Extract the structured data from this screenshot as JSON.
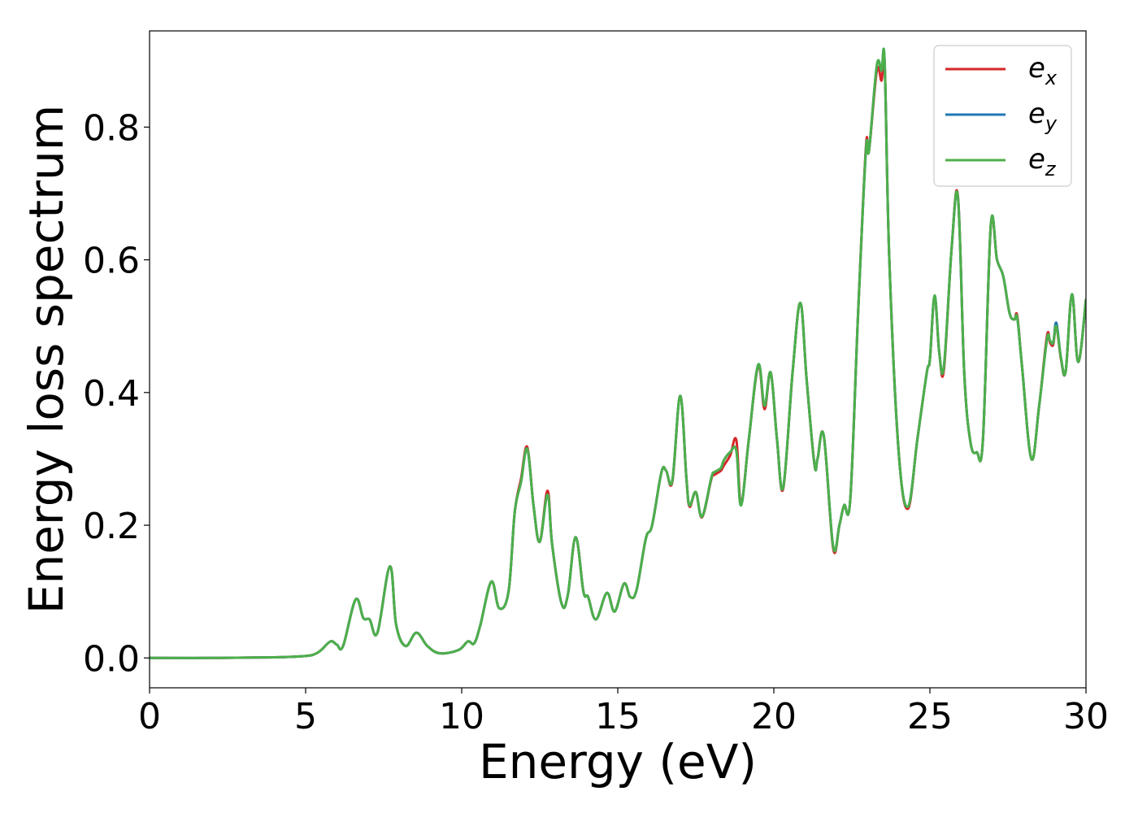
{
  "chart_data": {
    "type": "line",
    "title": "",
    "xlabel": "Energy (eV)",
    "ylabel": "Energy loss spectrum",
    "xlim": [
      0,
      30
    ],
    "ylim": [
      -0.045,
      0.945
    ],
    "xticks": [
      0,
      5,
      10,
      15,
      20,
      25,
      30
    ],
    "xtick_labels": [
      "0",
      "5",
      "10",
      "15",
      "20",
      "25",
      "30"
    ],
    "yticks": [
      0.0,
      0.2,
      0.4,
      0.6,
      0.8
    ],
    "ytick_labels": [
      "0.0",
      "0.2",
      "0.4",
      "0.6",
      "0.8"
    ],
    "grid": false,
    "legend": {
      "placement": "top-right",
      "entries": [
        {
          "base": "e",
          "sub": "x",
          "color": "#d62728"
        },
        {
          "base": "e",
          "sub": "y",
          "color": "#1f77b4"
        },
        {
          "base": "e",
          "sub": "z",
          "color": "#4daf4a"
        }
      ]
    },
    "x": [
      0,
      2,
      4,
      5,
      5.3,
      5.5,
      5.8,
      6.0,
      6.2,
      6.6,
      6.85,
      7.05,
      7.3,
      7.7,
      7.9,
      8.2,
      8.55,
      8.9,
      9.3,
      9.9,
      10.2,
      10.4,
      10.6,
      10.95,
      11.2,
      11.5,
      11.7,
      11.9,
      12.1,
      12.3,
      12.5,
      12.75,
      12.9,
      13.2,
      13.4,
      13.65,
      13.9,
      14.05,
      14.3,
      14.65,
      14.9,
      15.2,
      15.4,
      15.6,
      15.9,
      16.1,
      16.4,
      16.55,
      16.75,
      17.0,
      17.2,
      17.3,
      17.5,
      17.7,
      18.0,
      18.1,
      18.3,
      18.4,
      18.6,
      18.8,
      18.95,
      19.2,
      19.5,
      19.7,
      19.9,
      20.1,
      20.3,
      20.6,
      20.85,
      21.05,
      21.3,
      21.4,
      21.6,
      21.9,
      22.1,
      22.25,
      22.45,
      22.7,
      22.95,
      23.05,
      23.3,
      23.45,
      23.55,
      23.7,
      24.0,
      24.3,
      24.6,
      24.9,
      25.0,
      25.15,
      25.3,
      25.45,
      25.7,
      25.9,
      26.1,
      26.3,
      26.5,
      26.7,
      26.95,
      27.15,
      27.35,
      27.55,
      27.7,
      27.8,
      27.95,
      28.25,
      28.5,
      28.75,
      28.85,
      28.95,
      29.05,
      29.2,
      29.35,
      29.55,
      29.75,
      30.0
    ],
    "series": [
      {
        "name": "",
        "color": "#d62728",
        "values": [
          0.0,
          0.0,
          0.001,
          0.003,
          0.006,
          0.012,
          0.025,
          0.02,
          0.018,
          0.088,
          0.06,
          0.058,
          0.038,
          0.138,
          0.05,
          0.018,
          0.038,
          0.018,
          0.007,
          0.012,
          0.025,
          0.022,
          0.05,
          0.115,
          0.075,
          0.1,
          0.22,
          0.27,
          0.318,
          0.23,
          0.175,
          0.252,
          0.17,
          0.082,
          0.095,
          0.182,
          0.1,
          0.092,
          0.058,
          0.098,
          0.07,
          0.112,
          0.092,
          0.102,
          0.18,
          0.2,
          0.28,
          0.282,
          0.266,
          0.395,
          0.27,
          0.228,
          0.25,
          0.212,
          0.27,
          0.276,
          0.282,
          0.29,
          0.305,
          0.328,
          0.233,
          0.33,
          0.44,
          0.375,
          0.43,
          0.33,
          0.255,
          0.43,
          0.535,
          0.42,
          0.292,
          0.3,
          0.335,
          0.165,
          0.2,
          0.23,
          0.24,
          0.52,
          0.77,
          0.765,
          0.885,
          0.87,
          0.895,
          0.6,
          0.31,
          0.225,
          0.33,
          0.43,
          0.45,
          0.545,
          0.46,
          0.435,
          0.62,
          0.695,
          0.43,
          0.325,
          0.31,
          0.33,
          0.65,
          0.6,
          0.575,
          0.52,
          0.51,
          0.515,
          0.44,
          0.3,
          0.38,
          0.485,
          0.475,
          0.472,
          0.5,
          0.45,
          0.432,
          0.548,
          0.446,
          0.54
        ]
      },
      {
        "name": "",
        "color": "#1f77b4",
        "values": [
          0.0,
          0.0,
          0.001,
          0.003,
          0.006,
          0.012,
          0.025,
          0.02,
          0.018,
          0.088,
          0.06,
          0.058,
          0.038,
          0.138,
          0.05,
          0.018,
          0.038,
          0.018,
          0.007,
          0.012,
          0.025,
          0.022,
          0.05,
          0.115,
          0.075,
          0.1,
          0.22,
          0.265,
          0.315,
          0.23,
          0.175,
          0.246,
          0.17,
          0.082,
          0.095,
          0.182,
          0.1,
          0.092,
          0.058,
          0.098,
          0.07,
          0.112,
          0.092,
          0.102,
          0.18,
          0.2,
          0.28,
          0.282,
          0.268,
          0.395,
          0.27,
          0.23,
          0.25,
          0.213,
          0.272,
          0.28,
          0.286,
          0.298,
          0.31,
          0.312,
          0.23,
          0.33,
          0.442,
          0.38,
          0.43,
          0.33,
          0.257,
          0.43,
          0.535,
          0.42,
          0.292,
          0.3,
          0.335,
          0.168,
          0.2,
          0.23,
          0.24,
          0.52,
          0.765,
          0.765,
          0.893,
          0.885,
          0.898,
          0.6,
          0.31,
          0.228,
          0.33,
          0.43,
          0.45,
          0.546,
          0.46,
          0.44,
          0.62,
          0.693,
          0.43,
          0.325,
          0.31,
          0.33,
          0.652,
          0.6,
          0.575,
          0.52,
          0.51,
          0.512,
          0.44,
          0.3,
          0.38,
          0.48,
          0.478,
          0.475,
          0.505,
          0.452,
          0.432,
          0.548,
          0.446,
          0.54
        ]
      },
      {
        "name": "",
        "color": "#4daf4a",
        "values": [
          0.0,
          0.0,
          0.001,
          0.003,
          0.006,
          0.012,
          0.025,
          0.02,
          0.018,
          0.088,
          0.06,
          0.058,
          0.038,
          0.138,
          0.05,
          0.018,
          0.038,
          0.018,
          0.007,
          0.012,
          0.025,
          0.022,
          0.05,
          0.115,
          0.075,
          0.1,
          0.22,
          0.265,
          0.315,
          0.23,
          0.175,
          0.246,
          0.17,
          0.082,
          0.095,
          0.182,
          0.1,
          0.092,
          0.058,
          0.098,
          0.07,
          0.112,
          0.092,
          0.102,
          0.18,
          0.2,
          0.28,
          0.282,
          0.268,
          0.395,
          0.27,
          0.23,
          0.25,
          0.213,
          0.272,
          0.28,
          0.286,
          0.298,
          0.31,
          0.312,
          0.23,
          0.33,
          0.442,
          0.38,
          0.43,
          0.33,
          0.257,
          0.43,
          0.535,
          0.42,
          0.292,
          0.3,
          0.335,
          0.168,
          0.2,
          0.23,
          0.24,
          0.52,
          0.765,
          0.765,
          0.893,
          0.885,
          0.898,
          0.6,
          0.31,
          0.228,
          0.33,
          0.43,
          0.45,
          0.546,
          0.46,
          0.44,
          0.62,
          0.693,
          0.43,
          0.325,
          0.31,
          0.33,
          0.652,
          0.6,
          0.575,
          0.52,
          0.51,
          0.512,
          0.44,
          0.3,
          0.38,
          0.48,
          0.478,
          0.475,
          0.5,
          0.452,
          0.432,
          0.548,
          0.446,
          0.54
        ]
      }
    ]
  }
}
